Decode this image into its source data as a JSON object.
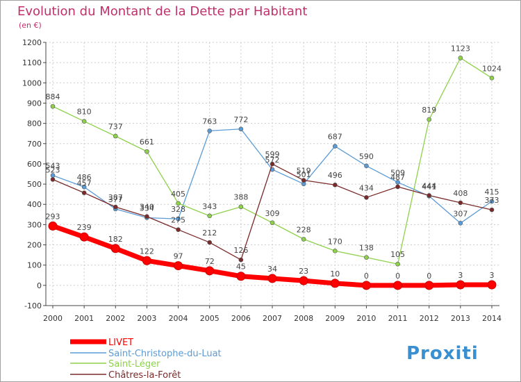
{
  "chart_data": {
    "type": "line",
    "title": "Evolution du Montant de la Dette par Habitant",
    "subtitle": "(en €)",
    "xlabel": "",
    "ylabel": "",
    "x": [
      "2000",
      "2001",
      "2002",
      "2003",
      "2004",
      "2005",
      "2006",
      "2007",
      "2008",
      "2009",
      "2010",
      "2011",
      "2012",
      "2013",
      "2014"
    ],
    "ylim": [
      -100,
      1200
    ],
    "yticks": [
      "-100",
      "0",
      "100",
      "200",
      "300",
      "400",
      "500",
      "600",
      "700",
      "800",
      "900",
      "1000",
      "1100",
      "1200"
    ],
    "grid": true,
    "legend_position": "bottom-left",
    "series": [
      {
        "name": "LIVET",
        "color": "#ff0000",
        "values": [
          293,
          239,
          182,
          122,
          97,
          72,
          45,
          34,
          23,
          10,
          0,
          0,
          0,
          3,
          3
        ]
      },
      {
        "name": "Saint-Christophe-du-Luat",
        "color": "#5b9bd5",
        "values": [
          543,
          486,
          377,
          334,
          328,
          763,
          772,
          572,
          501,
          687,
          590,
          509,
          441,
          307,
          415
        ]
      },
      {
        "name": "Saint-Léger",
        "color": "#8ed14a",
        "values": [
          884,
          810,
          737,
          661,
          405,
          343,
          388,
          309,
          228,
          170,
          138,
          105,
          819,
          1123,
          1024
        ]
      },
      {
        "name": "Châtres-la-Forêt",
        "color": "#7a2a2a",
        "values": [
          523,
          457,
          387,
          340,
          275,
          212,
          126,
          599,
          519,
          496,
          434,
          487,
          444,
          408,
          373
        ]
      }
    ]
  },
  "brand": {
    "logo_text": "Proxiti"
  }
}
